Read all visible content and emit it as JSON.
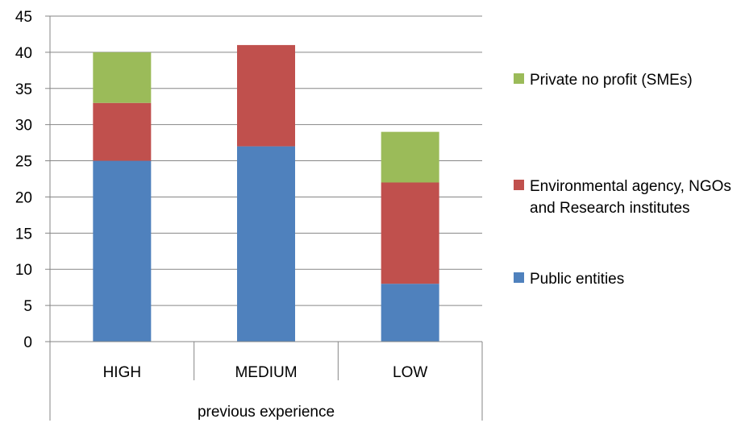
{
  "chart_data": {
    "type": "bar",
    "stacked": true,
    "categories": [
      "HIGH",
      "MEDIUM",
      "LOW"
    ],
    "group_label": "previous experience",
    "series": [
      {
        "name": "Public entities",
        "color": "#4F81BD",
        "values": [
          25,
          27,
          8
        ]
      },
      {
        "name": "Environmental agency, NGOs and Research institutes",
        "color": "#C0504D",
        "values": [
          8,
          14,
          14
        ]
      },
      {
        "name": "Private no profit (SMEs)",
        "color": "#9BBB59",
        "values": [
          7,
          0,
          7
        ]
      }
    ],
    "ylim": [
      0,
      45
    ],
    "yticks": [
      0,
      5,
      10,
      15,
      20,
      25,
      30,
      35,
      40,
      45
    ],
    "grid": true,
    "legend_position": "right",
    "legend_order": [
      "Private no profit (SMEs)",
      "Environmental agency, NGOs and Research institutes",
      "Public entities"
    ],
    "title": "",
    "xlabel": "",
    "ylabel": ""
  }
}
